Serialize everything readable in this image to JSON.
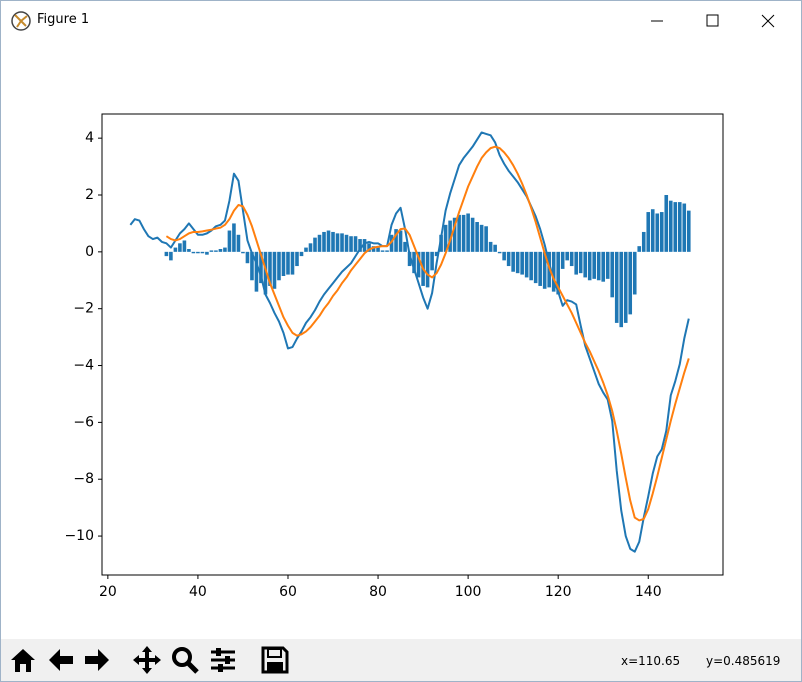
{
  "window": {
    "title": "Figure 1"
  },
  "status": {
    "x": "x=110.65",
    "y": "y=0.485619"
  },
  "chart_data": {
    "type": "combo",
    "xlim": [
      18.7,
      156.6
    ],
    "xticks": [
      20,
      40,
      60,
      80,
      100,
      120,
      140
    ],
    "ylim": [
      -11.37,
      4.85
    ],
    "yticks": [
      {
        "value": 4,
        "label": "4"
      },
      {
        "value": 2,
        "label": "2"
      },
      {
        "value": 0,
        "label": "0"
      },
      {
        "value": -2,
        "label": "−2"
      },
      {
        "value": -4,
        "label": "−4"
      },
      {
        "value": -6,
        "label": "−6"
      },
      {
        "value": -8,
        "label": "−8"
      },
      {
        "value": -10,
        "label": "−10"
      }
    ],
    "series": [
      {
        "type": "bar",
        "color": "#1f77b4",
        "x": [
          33,
          34,
          35,
          36,
          37,
          38,
          39,
          40,
          41,
          42,
          43,
          44,
          45,
          46,
          47,
          48,
          49,
          50,
          51,
          52,
          53,
          54,
          55,
          56,
          57,
          58,
          59,
          60,
          61,
          62,
          63,
          64,
          65,
          66,
          67,
          68,
          69,
          70,
          71,
          72,
          73,
          74,
          75,
          76,
          77,
          78,
          79,
          80,
          81,
          82,
          83,
          84,
          85,
          86,
          87,
          88,
          89,
          90,
          91,
          92,
          93,
          94,
          95,
          96,
          97,
          98,
          99,
          100,
          101,
          102,
          103,
          104,
          105,
          106,
          107,
          108,
          109,
          110,
          111,
          112,
          113,
          114,
          115,
          116,
          117,
          118,
          119,
          120,
          121,
          122,
          123,
          124,
          125,
          126,
          127,
          128,
          129,
          130,
          131,
          132,
          133,
          134,
          135,
          136,
          137,
          138,
          139,
          140,
          141,
          142,
          143,
          144,
          145,
          146,
          147,
          148,
          149
        ],
        "values": [
          -0.15,
          -0.3,
          0.15,
          0.3,
          0.4,
          0.1,
          -0.05,
          -0.05,
          -0.05,
          -0.1,
          0.05,
          0.05,
          0.1,
          0.15,
          0.75,
          1.0,
          0.6,
          -0.05,
          -0.4,
          -1.0,
          -1.4,
          -1.1,
          -1.5,
          -1.2,
          -1.3,
          -1.0,
          -0.85,
          -0.8,
          -0.8,
          -0.5,
          -0.15,
          0.15,
          0.3,
          0.5,
          0.6,
          0.7,
          0.75,
          0.7,
          0.65,
          0.65,
          0.6,
          0.55,
          0.55,
          0.45,
          0.45,
          0.3,
          0.2,
          0.15,
          0.05,
          0.05,
          0.6,
          0.8,
          0.75,
          0.35,
          -0.5,
          -0.75,
          -0.9,
          -1.2,
          -1.25,
          -0.65,
          -0.15,
          0.6,
          0.95,
          1.1,
          1.2,
          1.3,
          1.3,
          1.35,
          1.2,
          1.05,
          0.95,
          0.9,
          0.35,
          0.25,
          -0.05,
          -0.3,
          -0.5,
          -0.7,
          -0.75,
          -0.8,
          -0.9,
          -1.0,
          -1.1,
          -1.2,
          -1.3,
          -1.25,
          -1.4,
          -1.5,
          -0.6,
          -0.3,
          -0.5,
          -0.8,
          -0.75,
          -0.9,
          -1.0,
          -0.95,
          -1.0,
          -1.05,
          -0.95,
          -1.6,
          -2.5,
          -2.65,
          -2.5,
          -2.2,
          -1.5,
          0.2,
          0.7,
          1.4,
          1.5,
          1.35,
          1.4,
          2.0,
          1.8,
          1.75,
          1.75,
          1.7,
          1.45
        ]
      },
      {
        "type": "line",
        "color": "#1f77b4",
        "x": [
          25,
          26,
          27,
          28,
          29,
          30,
          31,
          32,
          33,
          34,
          35,
          36,
          37,
          38,
          39,
          40,
          41,
          42,
          43,
          44,
          45,
          46,
          47,
          48,
          49,
          50,
          51,
          52,
          53,
          54,
          55,
          56,
          57,
          58,
          59,
          60,
          61,
          62,
          63,
          64,
          65,
          66,
          67,
          68,
          69,
          70,
          71,
          72,
          73,
          74,
          75,
          76,
          77,
          78,
          79,
          80,
          81,
          82,
          83,
          84,
          85,
          86,
          87,
          88,
          89,
          90,
          91,
          92,
          93,
          94,
          95,
          96,
          97,
          98,
          99,
          100,
          101,
          102,
          103,
          104,
          105,
          106,
          107,
          108,
          109,
          110,
          111,
          112,
          113,
          114,
          115,
          116,
          117,
          118,
          119,
          120,
          121,
          122,
          123,
          124,
          125,
          126,
          127,
          128,
          129,
          130,
          131,
          132,
          133,
          134,
          135,
          136,
          137,
          138,
          139,
          140,
          141,
          142,
          143,
          144,
          145,
          146,
          147,
          148,
          149
        ],
        "values": [
          0.95,
          1.15,
          1.1,
          0.8,
          0.55,
          0.45,
          0.5,
          0.35,
          0.3,
          0.15,
          0.4,
          0.65,
          0.8,
          1.0,
          0.8,
          0.6,
          0.6,
          0.65,
          0.75,
          0.9,
          0.95,
          1.1,
          1.8,
          2.75,
          2.5,
          1.45,
          0.4,
          -0.05,
          -0.4,
          -0.85,
          -1.5,
          -1.8,
          -2.15,
          -2.45,
          -2.85,
          -3.4,
          -3.35,
          -3.05,
          -2.8,
          -2.5,
          -2.3,
          -2.05,
          -1.75,
          -1.5,
          -1.3,
          -1.1,
          -0.9,
          -0.7,
          -0.55,
          -0.4,
          -0.15,
          0.1,
          0.3,
          0.35,
          0.3,
          0.3,
          0.2,
          0.2,
          0.95,
          1.35,
          1.55,
          0.8,
          -0.1,
          -0.6,
          -1.1,
          -1.6,
          -2.0,
          -1.45,
          -0.4,
          0.5,
          1.45,
          2.05,
          2.55,
          3.05,
          3.3,
          3.5,
          3.7,
          3.95,
          4.2,
          4.15,
          4.1,
          3.85,
          3.4,
          3.1,
          2.85,
          2.65,
          2.45,
          2.2,
          1.95,
          1.6,
          1.25,
          0.8,
          0.25,
          -0.4,
          -1.0,
          -1.4,
          -1.9,
          -1.7,
          -1.75,
          -1.85,
          -2.6,
          -3.3,
          -3.75,
          -4.2,
          -4.65,
          -4.95,
          -5.2,
          -5.95,
          -7.7,
          -9.1,
          -10.0,
          -10.45,
          -10.55,
          -10.2,
          -9.35,
          -8.6,
          -7.8,
          -7.2,
          -6.95,
          -6.3,
          -5.05,
          -4.55,
          -3.95,
          -3.05,
          -2.35
        ]
      },
      {
        "type": "line",
        "color": "#ff7f0e",
        "x": [
          33,
          34,
          35,
          36,
          37,
          38,
          39,
          40,
          41,
          42,
          43,
          44,
          45,
          46,
          47,
          48,
          49,
          50,
          51,
          52,
          53,
          54,
          55,
          56,
          57,
          58,
          59,
          60,
          61,
          62,
          63,
          64,
          65,
          66,
          67,
          68,
          69,
          70,
          71,
          72,
          73,
          74,
          75,
          76,
          77,
          78,
          79,
          80,
          81,
          82,
          83,
          84,
          85,
          86,
          87,
          88,
          89,
          90,
          91,
          92,
          93,
          94,
          95,
          96,
          97,
          98,
          99,
          100,
          101,
          102,
          103,
          104,
          105,
          106,
          107,
          108,
          109,
          110,
          111,
          112,
          113,
          114,
          115,
          116,
          117,
          118,
          119,
          120,
          121,
          122,
          123,
          124,
          125,
          126,
          127,
          128,
          129,
          130,
          131,
          132,
          133,
          134,
          135,
          136,
          137,
          138,
          139,
          140,
          141,
          142,
          143,
          144,
          145,
          146,
          147,
          148,
          149
        ],
        "values": [
          0.55,
          0.45,
          0.4,
          0.45,
          0.55,
          0.65,
          0.7,
          0.7,
          0.72,
          0.75,
          0.78,
          0.82,
          0.85,
          0.95,
          1.15,
          1.45,
          1.65,
          1.6,
          1.3,
          0.9,
          0.4,
          -0.1,
          -0.6,
          -1.1,
          -1.5,
          -1.9,
          -2.3,
          -2.6,
          -2.85,
          -2.95,
          -2.9,
          -2.8,
          -2.65,
          -2.45,
          -2.25,
          -2.0,
          -1.8,
          -1.55,
          -1.35,
          -1.1,
          -0.9,
          -0.65,
          -0.45,
          -0.25,
          -0.05,
          0.08,
          0.15,
          0.18,
          0.2,
          0.2,
          0.35,
          0.6,
          0.8,
          0.82,
          0.6,
          0.2,
          -0.2,
          -0.6,
          -0.8,
          -0.9,
          -0.75,
          -0.45,
          -0.05,
          0.4,
          0.9,
          1.4,
          1.85,
          2.3,
          2.65,
          3.0,
          3.3,
          3.5,
          3.65,
          3.7,
          3.65,
          3.5,
          3.3,
          3.05,
          2.75,
          2.4,
          2.0,
          1.55,
          1.05,
          0.5,
          -0.05,
          -0.55,
          -0.95,
          -1.25,
          -1.55,
          -1.85,
          -2.15,
          -2.5,
          -2.85,
          -3.2,
          -3.5,
          -3.85,
          -4.2,
          -4.6,
          -5.05,
          -5.6,
          -6.3,
          -7.1,
          -7.95,
          -8.75,
          -9.35,
          -9.45,
          -9.4,
          -9.05,
          -8.5,
          -7.9,
          -7.25,
          -6.6,
          -5.95,
          -5.35,
          -4.8,
          -4.25,
          -3.75
        ]
      }
    ]
  }
}
